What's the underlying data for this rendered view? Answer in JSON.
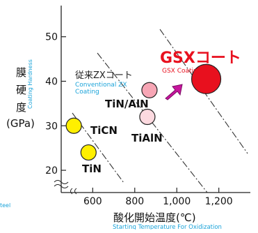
{
  "chart_data": {
    "type": "scatter",
    "title": "",
    "xlabel_jp": "酸化開始温度(℃)",
    "xlabel_en": "Starting Temperature For Oxidization",
    "ylabel_jp": [
      "膜",
      "硬",
      "度"
    ],
    "ylabel_unit": "(GPa)",
    "ylabel_en": "Coating Hardness",
    "xlim": [
      450,
      1350
    ],
    "ylim": [
      15,
      57
    ],
    "x_ticks": [
      {
        "v": 600,
        "label": "600"
      },
      {
        "v": 800,
        "label": "800"
      },
      {
        "v": 1000,
        "label": "1,000"
      },
      {
        "v": 1200,
        "label": "1,200"
      }
    ],
    "y_ticks": [
      {
        "v": 20,
        "label": "20"
      },
      {
        "v": 30,
        "label": "30"
      },
      {
        "v": 40,
        "label": "40"
      },
      {
        "v": 50,
        "label": "50"
      }
    ],
    "points": [
      {
        "name": "TiCN",
        "x": 510,
        "y": 30,
        "color": "#ffef00",
        "r": 11
      },
      {
        "name": "TiN",
        "x": 580,
        "y": 24,
        "color": "#ffef00",
        "r": 11
      },
      {
        "name": "TiN/AlN",
        "x": 870,
        "y": 38,
        "color": "#f7a6b5",
        "r": 11
      },
      {
        "name": "TiAlN",
        "x": 860,
        "y": 32,
        "color": "#fcd9df",
        "r": 11
      },
      {
        "name": "GSXコート",
        "x": 1140,
        "y": 40.5,
        "color": "#e8101e",
        "r": 21
      }
    ],
    "annotations": {
      "conventional_jp": "従来ZXコート",
      "conventional_en_1": "Conventional ZX",
      "conventional_en_2": "Coating",
      "gsx_jp": "GSXコート",
      "gsx_en": "GSX Coating"
    },
    "footer_text": "teel"
  }
}
